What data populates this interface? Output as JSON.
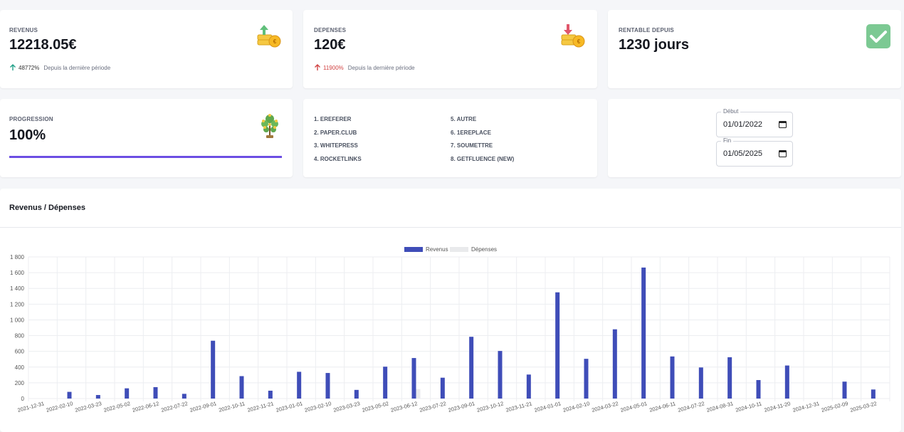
{
  "revenus": {
    "label": "REVENUS",
    "value": "12218.05€",
    "trend_pct": "48772%",
    "trend_text": "Depuis la dernière période",
    "trend_color": "#21a088"
  },
  "depenses": {
    "label": "DEPENSES",
    "value": "120€",
    "trend_pct": "11900%",
    "trend_text": "Depuis la dernière période",
    "trend_color": "#d14343"
  },
  "rentable": {
    "label": "RENTABLE DEPUIS",
    "value": "1230 jours",
    "icon": "check-icon"
  },
  "progression": {
    "label": "PROGRESSION",
    "value": "100%",
    "progress": 1.0,
    "bar_color": "#6c4ee3"
  },
  "sources": {
    "col1": [
      "1. EREFERER",
      "2. PAPER.CLUB",
      "3. WHITEPRESS",
      "4. ROCKETLINKS"
    ],
    "col2": [
      "5. AUTRE",
      "6. 1EREPLACE",
      "7. SOUMETTRE",
      "8. GETFLUENCE (NEW)"
    ]
  },
  "dates": {
    "debut_label": "Début",
    "debut_value": "01/01/2022",
    "fin_label": "Fin",
    "fin_value": "01/05/2025"
  },
  "chart": {
    "title": "Revenus / Dépenses"
  },
  "chart_data": {
    "type": "bar",
    "title": "Revenus / Dépenses",
    "ylim": [
      0,
      1800
    ],
    "yticks": [
      "0",
      "200",
      "400",
      "600",
      "800",
      "1 000",
      "1 200",
      "1 400",
      "1 600",
      "1 800"
    ],
    "legend_position": "top-center",
    "categories": [
      "2021-12-31",
      "2022-02-10",
      "2022-03-23",
      "2022-05-02",
      "2022-06-12",
      "2022-07-22",
      "2022-09-01",
      "2022-10-11",
      "2022-11-21",
      "2023-01-01",
      "2023-02-10",
      "2023-03-23",
      "2023-05-02",
      "2023-06-12",
      "2023-07-22",
      "2023-09-01",
      "2023-10-12",
      "2023-11-21",
      "2024-01-01",
      "2024-02-10",
      "2024-03-22",
      "2024-05-01",
      "2024-06-11",
      "2024-07-22",
      "2024-08-31",
      "2024-10-11",
      "2024-11-20",
      "2024-12-31",
      "2025-02-09",
      "2025-03-22"
    ],
    "series": [
      {
        "name": "Revenus",
        "color": "#3f4db8",
        "values": [
          0,
          85,
          45,
          130,
          145,
          60,
          735,
          285,
          100,
          340,
          325,
          110,
          405,
          515,
          265,
          785,
          605,
          305,
          1350,
          505,
          880,
          1665,
          535,
          395,
          525,
          235,
          420,
          0,
          215,
          115
        ]
      },
      {
        "name": "Dépenses",
        "color": "#e9eaec",
        "values": [
          0,
          0,
          0,
          0,
          0,
          0,
          0,
          0,
          0,
          0,
          0,
          0,
          0,
          120,
          0,
          0,
          0,
          0,
          0,
          0,
          0,
          0,
          0,
          0,
          0,
          0,
          0,
          0,
          0,
          0
        ]
      }
    ]
  }
}
